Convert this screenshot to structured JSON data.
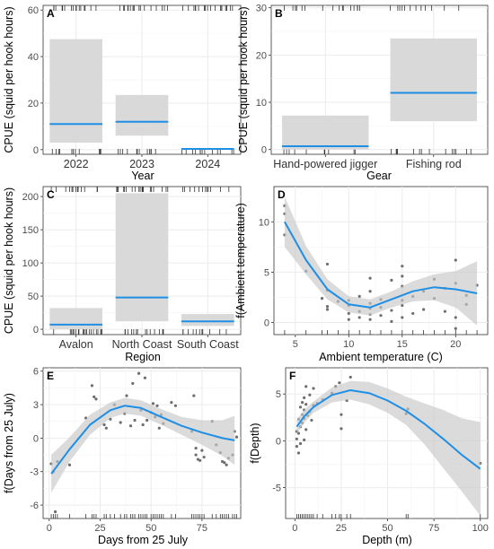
{
  "chart_data": [
    {
      "panel": "A",
      "type": "bar",
      "xlabel": "Year",
      "ylabel": "CPUE (squid per hook hours)",
      "categories": [
        "2022",
        "2023",
        "2024"
      ],
      "estimate": [
        11,
        12,
        0.3
      ],
      "ci_lower": [
        3,
        6,
        0
      ],
      "ci_upper": [
        47.5,
        23.5,
        0.6
      ],
      "ylim": [
        -2,
        62
      ],
      "yticks": [
        0,
        20,
        40,
        60
      ],
      "grid": true
    },
    {
      "panel": "B",
      "type": "bar",
      "xlabel": "Gear",
      "ylabel": "CPUE (squid per hook hours)",
      "categories": [
        "Hand-powered jigger",
        "Fishing rod"
      ],
      "estimate": [
        0.7,
        12
      ],
      "ci_lower": [
        0,
        6
      ],
      "ci_upper": [
        7.2,
        23.5
      ],
      "ylim": [
        -1,
        30.5
      ],
      "yticks": [
        0,
        10,
        20,
        30
      ],
      "grid": true
    },
    {
      "panel": "C",
      "type": "bar",
      "xlabel": "Region",
      "ylabel": "CPUE (squid per hook hours)",
      "categories": [
        "Avalon",
        "North Coast",
        "South Coast"
      ],
      "estimate": [
        7,
        48,
        12
      ],
      "ci_lower": [
        0,
        12,
        5
      ],
      "ci_upper": [
        32,
        205,
        23
      ],
      "ylim": [
        -8,
        215
      ],
      "yticks": [
        0,
        50,
        100,
        150,
        200
      ],
      "grid": true
    },
    {
      "panel": "D",
      "type": "line",
      "xlabel": "Ambient temperature (C)",
      "ylabel": "f(Ambient temperature)",
      "xlim": [
        3,
        23
      ],
      "ylim": [
        -1.2,
        13.5
      ],
      "xticks": [
        5,
        10,
        15,
        20
      ],
      "yticks": [
        0,
        5,
        10
      ],
      "grid": true,
      "x": [
        4,
        6,
        8,
        10,
        12,
        14,
        16,
        18,
        20,
        22
      ],
      "y": [
        10,
        6.2,
        3.3,
        1.8,
        1.5,
        2.3,
        3.1,
        3.5,
        3.3,
        2.9
      ],
      "ci_lower": [
        7.5,
        4.8,
        2.3,
        1.0,
        0.7,
        1.5,
        2.1,
        2.2,
        1.5,
        -0.3
      ],
      "ci_upper": [
        12.5,
        7.6,
        4.3,
        2.6,
        2.3,
        3.1,
        4.1,
        4.8,
        5.1,
        6.1
      ],
      "points": [
        [
          4,
          11.6
        ],
        [
          4,
          10.8
        ],
        [
          4,
          8.7
        ],
        [
          6,
          5.1
        ],
        [
          7.5,
          2.4
        ],
        [
          8,
          5.8
        ],
        [
          8,
          3.2
        ],
        [
          8,
          1.6
        ],
        [
          8,
          1.3
        ],
        [
          9,
          2.1
        ],
        [
          10,
          0.3
        ],
        [
          10,
          0.9
        ],
        [
          10,
          1.7
        ],
        [
          10,
          2.2
        ],
        [
          11,
          0.5
        ],
        [
          11,
          1.1
        ],
        [
          11,
          2.6
        ],
        [
          12,
          0.3
        ],
        [
          12,
          0.8
        ],
        [
          12,
          1.4
        ],
        [
          12,
          1.9
        ],
        [
          12,
          3.1
        ],
        [
          12,
          4.4
        ],
        [
          13,
          0.7
        ],
        [
          13,
          1.5
        ],
        [
          13,
          2.3
        ],
        [
          14,
          0.1
        ],
        [
          14,
          1.2
        ],
        [
          14,
          4.2
        ],
        [
          15,
          0.5
        ],
        [
          15,
          1.7
        ],
        [
          15,
          2.2
        ],
        [
          15,
          3.6
        ],
        [
          15,
          4.6
        ],
        [
          15,
          5.6
        ],
        [
          16,
          0.9
        ],
        [
          16,
          2.6
        ],
        [
          17,
          1.3
        ],
        [
          17,
          3.1
        ],
        [
          18,
          2.4
        ],
        [
          18,
          4.3
        ],
        [
          19,
          1.1
        ],
        [
          19,
          3.4
        ],
        [
          20,
          0.5
        ],
        [
          20,
          -0.6
        ],
        [
          20,
          6.2
        ],
        [
          20,
          3.9
        ],
        [
          21,
          1.8
        ],
        [
          21,
          2.7
        ],
        [
          22,
          3.7
        ]
      ]
    },
    {
      "panel": "E",
      "type": "line",
      "xlabel": "Days from 25 July",
      "ylabel": "f(Days from 25 July)",
      "xlim": [
        -3,
        94
      ],
      "ylim": [
        -7.2,
        6.3
      ],
      "xticks": [
        0,
        25,
        50,
        75
      ],
      "yticks": [
        -6,
        -3,
        0,
        3,
        6
      ],
      "grid": true,
      "x": [
        1,
        10,
        20,
        30,
        37,
        45,
        55,
        65,
        75,
        85,
        91
      ],
      "y": [
        -3.2,
        -1.0,
        1.2,
        2.5,
        2.9,
        2.7,
        1.9,
        1.1,
        0.5,
        0.0,
        -0.2
      ],
      "ci_lower": [
        -4.9,
        -2.1,
        0.3,
        1.8,
        2.2,
        2.0,
        1.2,
        0.3,
        -0.6,
        -1.6,
        -2.4
      ],
      "ci_upper": [
        -1.5,
        0.1,
        2.1,
        3.2,
        3.6,
        3.4,
        2.6,
        1.9,
        1.6,
        1.6,
        2.0
      ],
      "points": [
        [
          1,
          -2.3
        ],
        [
          2,
          -3.0
        ],
        [
          3,
          -6.6
        ],
        [
          4,
          -2.1
        ],
        [
          10,
          -2.4
        ],
        [
          18,
          1.8
        ],
        [
          21,
          4.7
        ],
        [
          22,
          3.7
        ],
        [
          23,
          3.5
        ],
        [
          27,
          1.2
        ],
        [
          28,
          0.9
        ],
        [
          30,
          1.7
        ],
        [
          32,
          3.0
        ],
        [
          35,
          1.4
        ],
        [
          37,
          2.2
        ],
        [
          38,
          3.8
        ],
        [
          40,
          1.1
        ],
        [
          41,
          4.9
        ],
        [
          42,
          1.6
        ],
        [
          44,
          5.8
        ],
        [
          45,
          2.5
        ],
        [
          46,
          1.2
        ],
        [
          47,
          5.4
        ],
        [
          48,
          1.6
        ],
        [
          50,
          2.3
        ],
        [
          51,
          3.1
        ],
        [
          52,
          1.9
        ],
        [
          53,
          2.9
        ],
        [
          54,
          0.9
        ],
        [
          55,
          2.1
        ],
        [
          56,
          1.3
        ],
        [
          60,
          3.2
        ],
        [
          62,
          2.9
        ],
        [
          70,
          0.6
        ],
        [
          71,
          3.8
        ],
        [
          72,
          -0.9
        ],
        [
          72,
          -1.5
        ],
        [
          73,
          -1.9
        ],
        [
          74,
          -2.0
        ],
        [
          75,
          -1.1
        ],
        [
          76,
          -1.7
        ],
        [
          80,
          1.5
        ],
        [
          82,
          -0.6
        ],
        [
          84,
          -1.3
        ],
        [
          85,
          -2.1
        ],
        [
          86,
          -2.2
        ],
        [
          87,
          -2.4
        ],
        [
          88,
          -1.8
        ],
        [
          90,
          -1.5
        ],
        [
          91,
          0.6
        ],
        [
          92,
          0.1
        ]
      ]
    },
    {
      "panel": "F",
      "type": "line",
      "xlabel": "Depth (m)",
      "ylabel": "f(Depth)",
      "xlim": [
        -5,
        104
      ],
      "ylim": [
        -8.3,
        7.8
      ],
      "xticks": [
        0,
        25,
        50,
        75,
        100
      ],
      "yticks": [
        -5,
        0,
        5
      ],
      "grid": true,
      "x": [
        1,
        5,
        10,
        20,
        30,
        40,
        50,
        60,
        70,
        80,
        90,
        100
      ],
      "y": [
        1.5,
        2.6,
        3.6,
        4.9,
        5.4,
        5.1,
        4.3,
        3.2,
        1.8,
        0.2,
        -1.5,
        -3.0
      ],
      "ci_lower": [
        0.7,
        1.9,
        3.0,
        4.1,
        4.4,
        3.9,
        3.0,
        1.7,
        -0.4,
        -2.9,
        -5.4,
        -8.0
      ],
      "ci_upper": [
        2.3,
        3.3,
        4.2,
        5.7,
        6.4,
        6.3,
        5.6,
        4.7,
        4.0,
        3.3,
        2.4,
        2.0
      ],
      "points": [
        [
          1,
          1.0
        ],
        [
          1,
          0.2
        ],
        [
          1,
          -0.6
        ],
        [
          2,
          2.3
        ],
        [
          2,
          -1.3
        ],
        [
          2,
          0.8
        ],
        [
          3,
          3.6
        ],
        [
          3,
          1.5
        ],
        [
          3,
          -0.3
        ],
        [
          4,
          2.8
        ],
        [
          4,
          4.1
        ],
        [
          4,
          1.9
        ],
        [
          5,
          3.3
        ],
        [
          5,
          4.6
        ],
        [
          5,
          2.4
        ],
        [
          5,
          0.1
        ],
        [
          6,
          3.9
        ],
        [
          6,
          5.8
        ],
        [
          6,
          1.2
        ],
        [
          7,
          2.7
        ],
        [
          8,
          3.1
        ],
        [
          8,
          4.9
        ],
        [
          9,
          2.2
        ],
        [
          10,
          3.8
        ],
        [
          10,
          5.6
        ],
        [
          12,
          4.0
        ],
        [
          15,
          4.4
        ],
        [
          20,
          5.1
        ],
        [
          22,
          5.8
        ],
        [
          24,
          6.2
        ],
        [
          25,
          2.8
        ],
        [
          25,
          1.3
        ],
        [
          28,
          4.3
        ],
        [
          30,
          6.8
        ],
        [
          60,
          2.9
        ],
        [
          61,
          3.4
        ],
        [
          100,
          -2.4
        ]
      ]
    }
  ]
}
